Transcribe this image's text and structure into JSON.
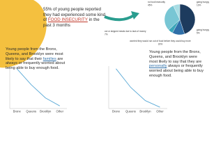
{
  "headline": {
    "before": "55% of young people reported they had experienced some kind of ",
    "highlight": "FOOD INSECURITY",
    "after": " in the past 3 months"
  },
  "caption_left": {
    "before": "Young people from the Bronx, Queens, and Brooklyn were most likely to say that their ",
    "highlight": "families",
    "after": " are always or frequently worried about being able to buy enough food."
  },
  "caption_right": {
    "before": "Young people from the Bronx, Queens, and Brooklyn were most likely to say that they are ",
    "highlight": "personally",
    "after": " always or frequently worried about being able to buy enough food."
  },
  "chart_data": [
    {
      "type": "pie",
      "categories": [
        "no food insecurity",
        "going hungry sometimes",
        "going hungry often",
        "worried they would run out of food before they could buy more",
        "cut or skipped meals due to lack of money"
      ],
      "values": [
        45,
        13,
        5,
        30,
        7
      ],
      "value_labels": [
        "45%",
        "13%",
        "5%",
        "30%",
        "7%"
      ],
      "colors": [
        "#1d3b5e",
        "#2f6fa8",
        "#3aa6b9",
        "#78c6d4",
        "#a9dde4"
      ]
    },
    {
      "type": "line",
      "categories": [
        "Bronx",
        "Queens",
        "Brooklyn",
        "Other"
      ],
      "values": [
        30,
        18,
        8,
        2
      ],
      "ylim": [
        0,
        32
      ],
      "color": "#5aa9d6"
    },
    {
      "type": "line",
      "categories": [
        "Bronx",
        "Queens",
        "Brooklyn",
        "Other"
      ],
      "values": [
        30,
        16,
        6,
        1
      ],
      "ylim": [
        0,
        32
      ],
      "color": "#5aa9d6"
    }
  ]
}
